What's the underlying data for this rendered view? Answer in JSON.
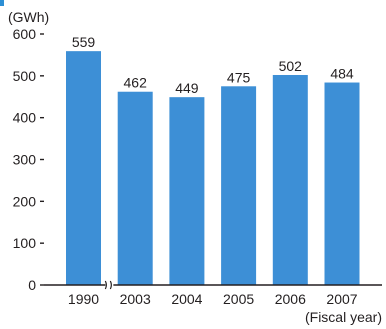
{
  "chart_data": {
    "type": "bar",
    "categories": [
      "1990",
      "2003",
      "2004",
      "2005",
      "2006",
      "2007"
    ],
    "values": [
      559,
      462,
      449,
      475,
      502,
      484
    ],
    "ylabel": "(GWh)",
    "xlabel": "(Fiscal year)",
    "ylim": [
      0,
      600
    ],
    "yticks": [
      0,
      100,
      200,
      300,
      400,
      500,
      600
    ],
    "axis_break_after_category": "1990",
    "grid": false,
    "data_labels": true,
    "bar_color": "#3d8fd6",
    "accent_color": "#2d8fd5"
  }
}
